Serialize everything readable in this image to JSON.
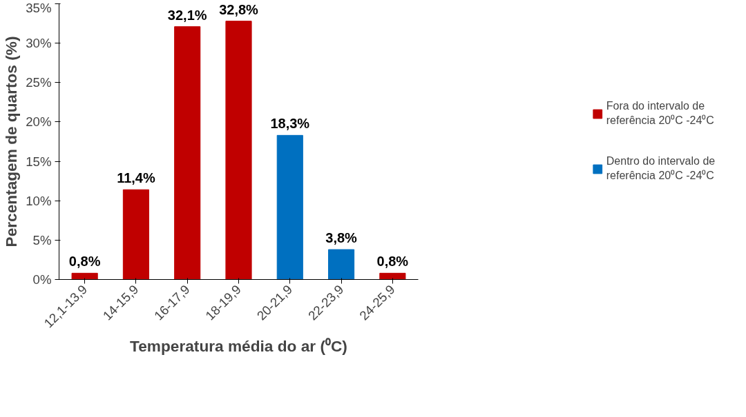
{
  "chart_data": {
    "type": "bar",
    "xlabel": "Temperatura média do ar (⁰C)",
    "ylabel": "Percentagem de quartos (%)",
    "categories": [
      "12,1-13,9",
      "14-15,9",
      "16-17,9",
      "18-19,9",
      "20-21,9",
      "22-23,9",
      "24-25,9"
    ],
    "series": [
      {
        "name": "Fora do intervalo de referência 20⁰C -24⁰C",
        "color": "#c00000",
        "values": [
          0.8,
          11.4,
          32.1,
          32.8,
          null,
          null,
          0.8
        ],
        "value_labels": [
          "0,8%",
          "11,4%",
          "32,1%",
          "32,8%",
          null,
          null,
          "0,8%"
        ]
      },
      {
        "name": "Dentro do intervalo de referência 20⁰C -24⁰C",
        "color": "#0070c0",
        "values": [
          null,
          null,
          null,
          null,
          18.3,
          3.8,
          null
        ],
        "value_labels": [
          null,
          null,
          null,
          null,
          "18,3%",
          "3,8%",
          null
        ]
      }
    ],
    "ylim": [
      0,
      35
    ],
    "yticks": [
      {
        "value": 0,
        "label": "0%"
      },
      {
        "value": 5,
        "label": "5%"
      },
      {
        "value": 10,
        "label": "10%"
      },
      {
        "value": 15,
        "label": "15%"
      },
      {
        "value": 20,
        "label": "20%"
      },
      {
        "value": 25,
        "label": "25%"
      },
      {
        "value": 30,
        "label": "30%"
      },
      {
        "value": 35,
        "label": "35%"
      }
    ],
    "grid": false,
    "legend": "right"
  }
}
